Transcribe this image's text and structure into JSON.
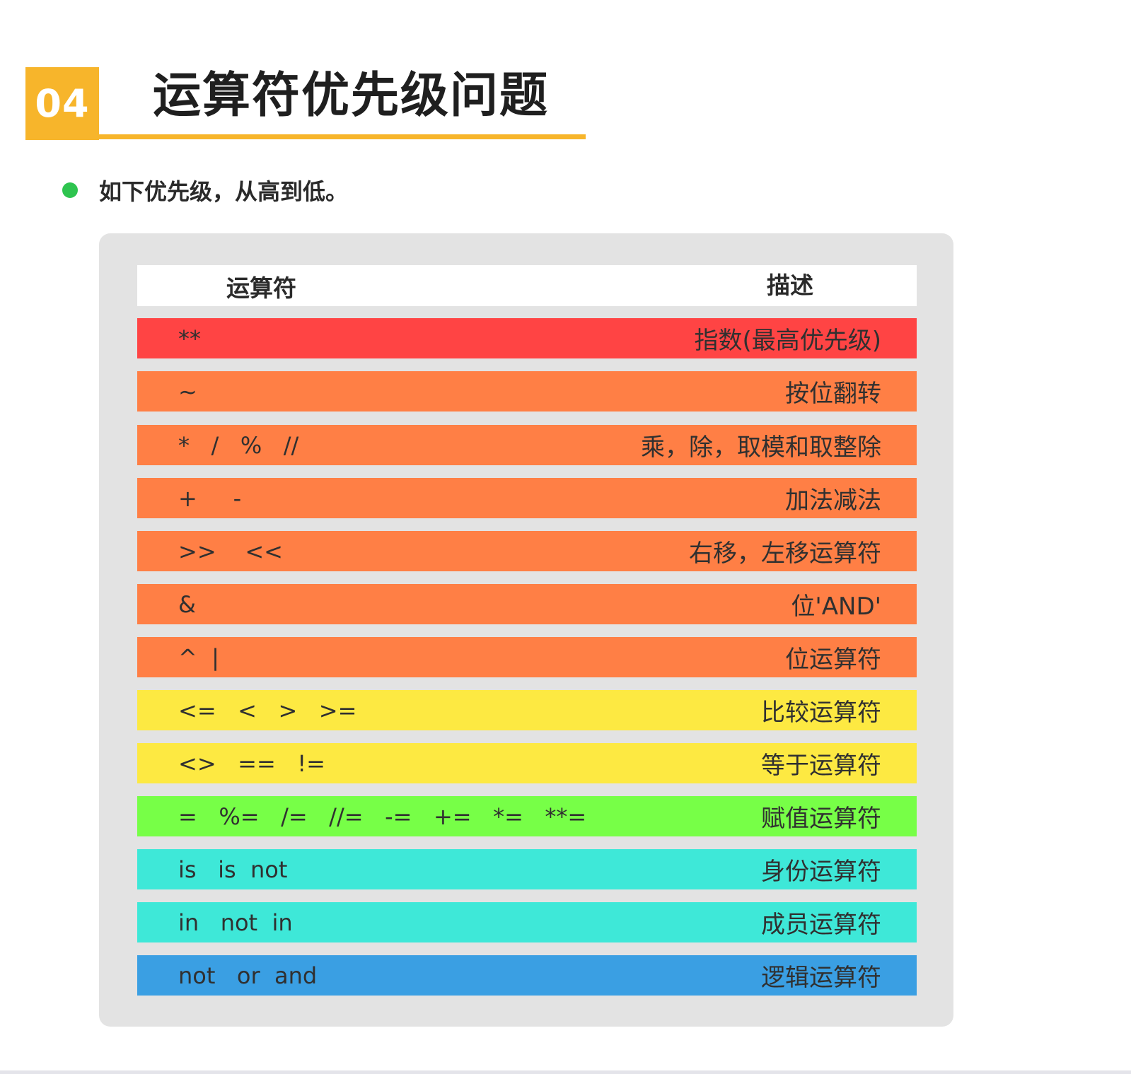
{
  "section": {
    "number": "04",
    "title": "运算符优先级问题",
    "accent_color": "#f7b52b"
  },
  "intro": {
    "text": "如下优先级，从高到低。",
    "bullet_color": "#2ec44f"
  },
  "table": {
    "headers": {
      "operator": "运算符",
      "description": "描述"
    },
    "rows": [
      {
        "operators": "**",
        "description": "指数(最高优先级)",
        "color": "#ff4444"
      },
      {
        "operators": "~",
        "description": "按位翻转",
        "color": "#ff7f45"
      },
      {
        "operators": "*   /   %   //",
        "description": "乘，除，取模和取整除",
        "color": "#ff7f45"
      },
      {
        "operators": "+     -",
        "description": "加法减法",
        "color": "#ff7f45"
      },
      {
        "operators": ">>    <<",
        "description": "右移，左移运算符",
        "color": "#ff7f45"
      },
      {
        "operators": "&",
        "description": "位'AND'",
        "color": "#ff7f45"
      },
      {
        "operators": "^  |",
        "description": "位运算符",
        "color": "#ff7f45"
      },
      {
        "operators": "<=   <   >   >=",
        "description": "比较运算符",
        "color": "#fde942"
      },
      {
        "operators": "<>   ==   !=",
        "description": "等于运算符",
        "color": "#fde942"
      },
      {
        "operators": "=   %=   /=   //=   -=   +=   *=   **=",
        "description": "赋值运算符",
        "color": "#77ff47"
      },
      {
        "operators": "is   is  not",
        "description": "身份运算符",
        "color": "#3ee8d8"
      },
      {
        "operators": "in   not  in",
        "description": "成员运算符",
        "color": "#3ee8d8"
      },
      {
        "operators": "not   or  and",
        "description": "逻辑运算符",
        "color": "#3a9fe3"
      }
    ]
  }
}
